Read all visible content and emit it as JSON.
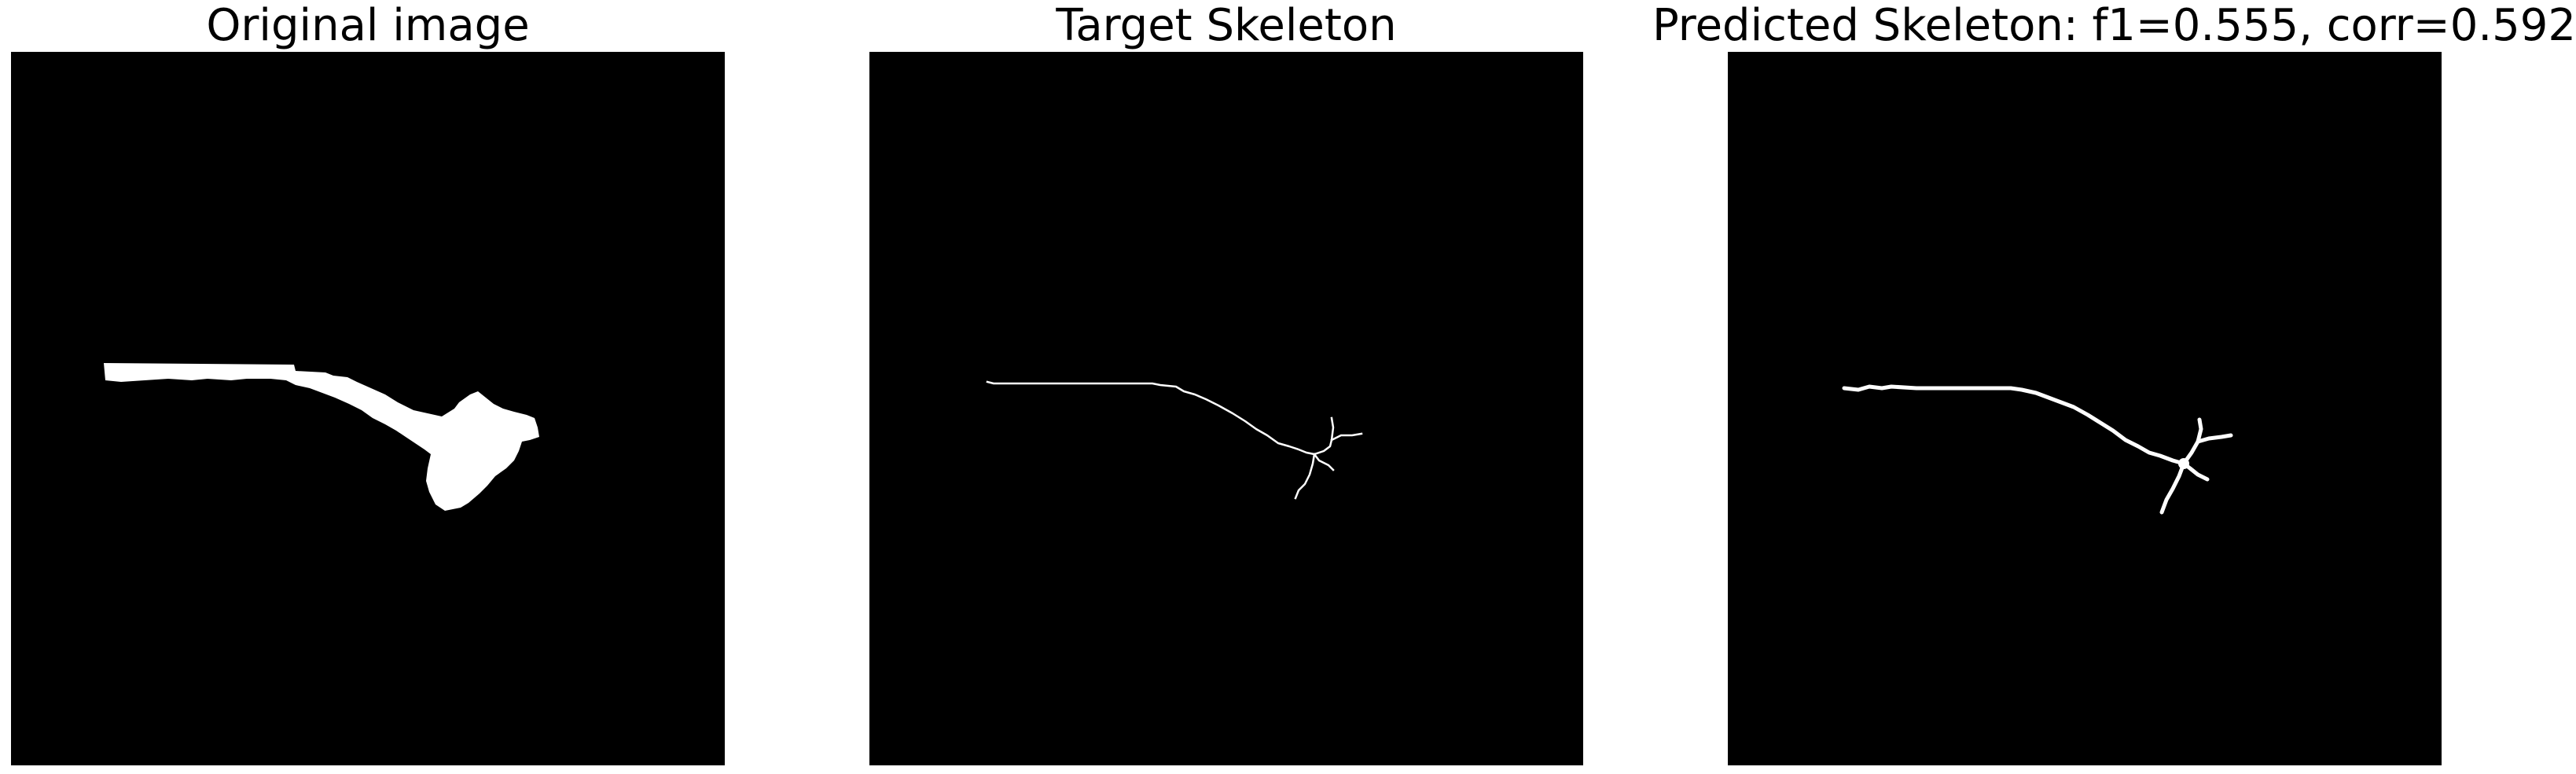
{
  "panels": [
    {
      "title": "Original image"
    },
    {
      "title": "Target Skeleton"
    },
    {
      "title": "Predicted Skeleton: f1=0.555, corr=0.592"
    }
  ],
  "colors": {
    "background": "#ffffff",
    "image_background": "#000000",
    "foreground": "#ffffff"
  }
}
